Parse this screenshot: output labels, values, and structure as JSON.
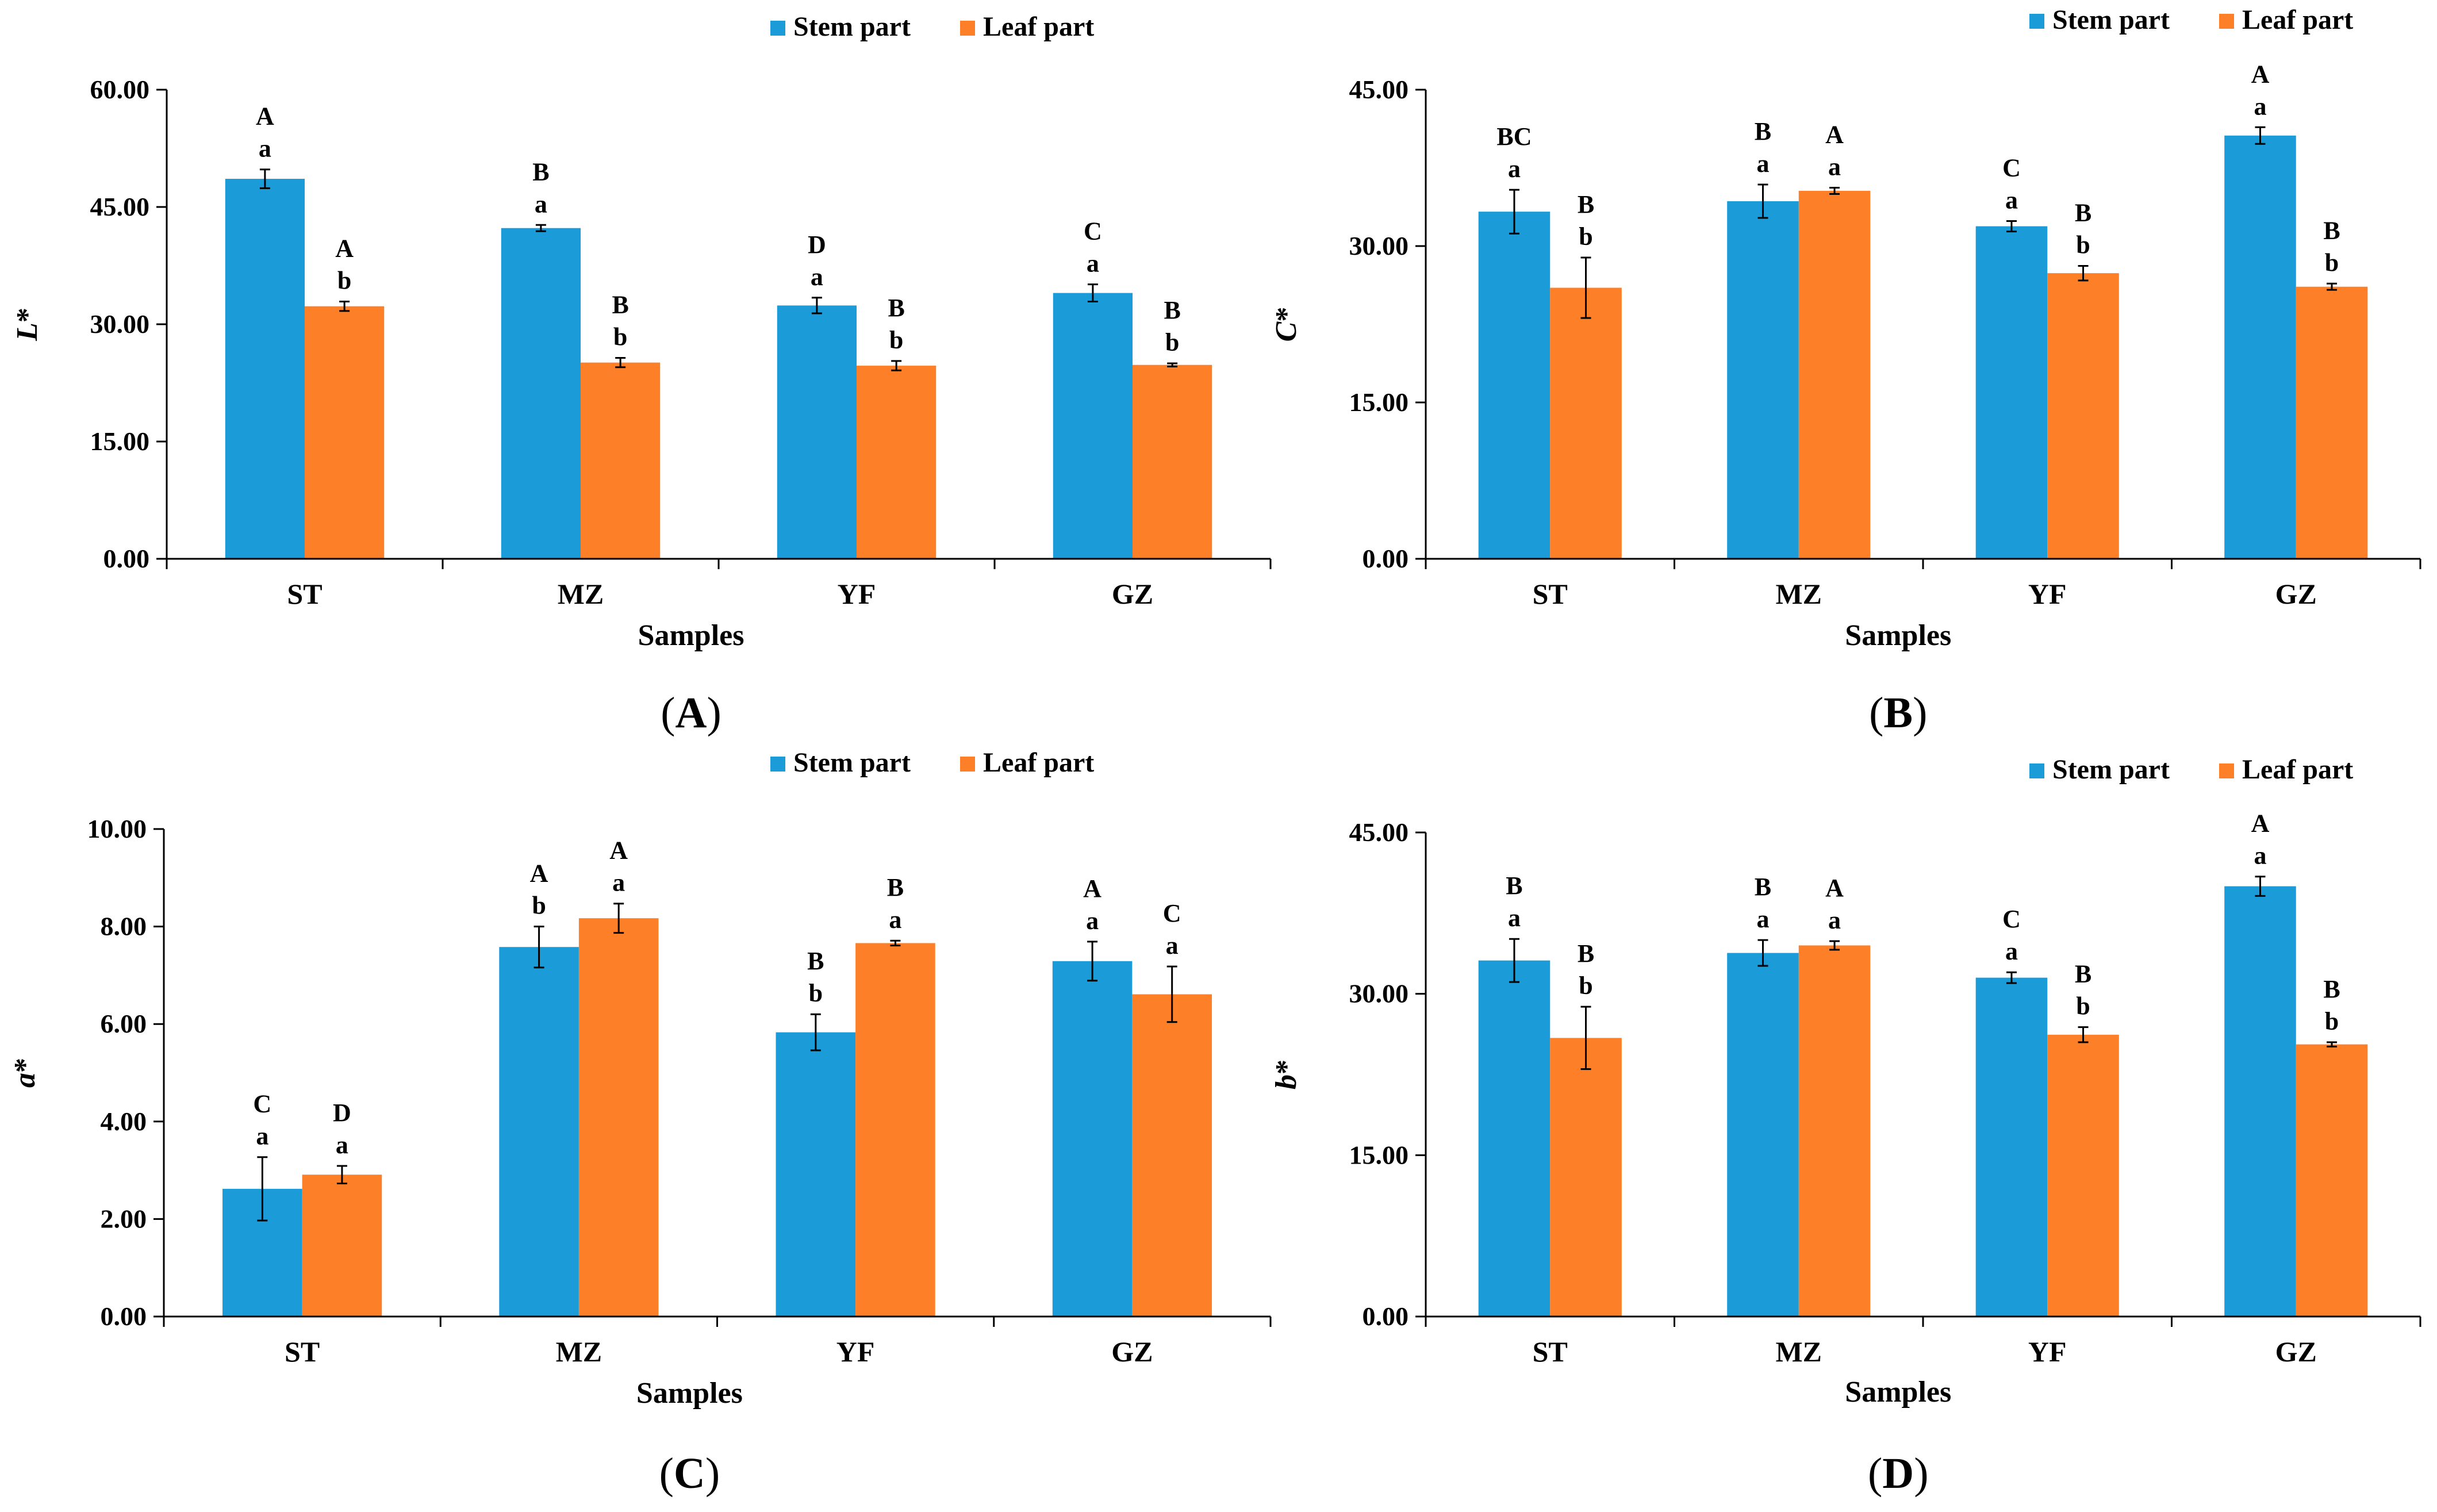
{
  "colors": {
    "stem": "#1b9cd8",
    "leaf": "#fd7f27",
    "axis": "#000000"
  },
  "legend": {
    "stem_label": "Stem part",
    "leaf_label": "Leaf part"
  },
  "chart_data": [
    {
      "panel": "(A)",
      "panel_letter": "A",
      "type": "bar",
      "ylabel_base": "L",
      "ylabel_suffix": "*",
      "xlabel": "Samples",
      "categories": [
        "ST",
        "MZ",
        "YF",
        "GZ"
      ],
      "ylim": [
        0,
        60
      ],
      "yticks": [
        0,
        15,
        30,
        45,
        60
      ],
      "ytick_labels": [
        "0.00",
        "15.00",
        "30.00",
        "45.00",
        "60.00"
      ],
      "series": [
        {
          "name": "Stem part",
          "values": [
            48.6,
            42.3,
            32.4,
            34.0
          ],
          "errors": [
            1.2,
            0.4,
            1.0,
            1.1
          ],
          "sig_upper": [
            "A",
            "B",
            "D",
            "C"
          ],
          "sig_lower": [
            "a",
            "a",
            "a",
            "a"
          ]
        },
        {
          "name": "Leaf part",
          "values": [
            32.3,
            25.1,
            24.7,
            24.8
          ],
          "errors": [
            0.6,
            0.6,
            0.6,
            0.2
          ],
          "sig_upper": [
            "A",
            "B",
            "B",
            "B"
          ],
          "sig_lower": [
            "b",
            "b",
            "b",
            "b"
          ]
        }
      ]
    },
    {
      "panel": "(B)",
      "panel_letter": "B",
      "type": "bar",
      "ylabel_base": "C",
      "ylabel_suffix": "*",
      "xlabel": "Samples",
      "categories": [
        "ST",
        "MZ",
        "YF",
        "GZ"
      ],
      "ylim": [
        0,
        45
      ],
      "yticks": [
        0,
        15,
        30,
        45
      ],
      "ytick_labels": [
        "0.00",
        "15.00",
        "30.00",
        "45.00"
      ],
      "series": [
        {
          "name": "Stem part",
          "values": [
            33.3,
            34.3,
            31.9,
            40.6
          ],
          "errors": [
            2.1,
            1.6,
            0.5,
            0.8
          ],
          "sig_upper": [
            "BC",
            "B",
            "C",
            "A"
          ],
          "sig_lower": [
            "a",
            "a",
            "a",
            "a"
          ]
        },
        {
          "name": "Leaf part",
          "values": [
            26.0,
            35.3,
            27.4,
            26.1
          ],
          "errors": [
            2.9,
            0.3,
            0.7,
            0.3
          ],
          "sig_upper": [
            "B",
            "A",
            "B",
            "B"
          ],
          "sig_lower": [
            "b",
            "a",
            "b",
            "b"
          ]
        }
      ]
    },
    {
      "panel": "(C)",
      "panel_letter": "C",
      "type": "bar",
      "ylabel_base": "a",
      "ylabel_suffix": "*",
      "xlabel": "Samples",
      "categories": [
        "ST",
        "MZ",
        "YF",
        "GZ"
      ],
      "ylim": [
        0,
        10
      ],
      "yticks": [
        0,
        2,
        4,
        6,
        8,
        10
      ],
      "ytick_labels": [
        "0.00",
        "2.00",
        "4.00",
        "6.00",
        "8.00",
        "10.00"
      ],
      "series": [
        {
          "name": "Stem part",
          "values": [
            2.62,
            7.58,
            5.83,
            7.29
          ],
          "errors": [
            0.65,
            0.42,
            0.37,
            0.4
          ],
          "sig_upper": [
            "C",
            "A",
            "B",
            "A"
          ],
          "sig_lower": [
            "a",
            "b",
            "b",
            "a"
          ]
        },
        {
          "name": "Leaf part",
          "values": [
            2.91,
            8.17,
            7.66,
            6.61
          ],
          "errors": [
            0.18,
            0.3,
            0.05,
            0.57
          ],
          "sig_upper": [
            "D",
            "A",
            "B",
            "C"
          ],
          "sig_lower": [
            "a",
            "a",
            "a",
            "a"
          ]
        }
      ]
    },
    {
      "panel": "(D)",
      "panel_letter": "D",
      "type": "bar",
      "ylabel_base": "b",
      "ylabel_suffix": "*",
      "xlabel": "Samples",
      "categories": [
        "ST",
        "MZ",
        "YF",
        "GZ"
      ],
      "ylim": [
        0,
        45
      ],
      "yticks": [
        0,
        15,
        30,
        45
      ],
      "ytick_labels": [
        "0.00",
        "15.00",
        "30.00",
        "45.00"
      ],
      "series": [
        {
          "name": "Stem part",
          "values": [
            33.1,
            33.8,
            31.5,
            40.0
          ],
          "errors": [
            2.0,
            1.2,
            0.5,
            0.9
          ],
          "sig_upper": [
            "B",
            "B",
            "C",
            "A"
          ],
          "sig_lower": [
            "a",
            "a",
            "a",
            "a"
          ]
        },
        {
          "name": "Leaf part",
          "values": [
            25.9,
            34.5,
            26.2,
            25.3
          ],
          "errors": [
            2.9,
            0.4,
            0.7,
            0.2
          ],
          "sig_upper": [
            "B",
            "A",
            "B",
            "B"
          ],
          "sig_lower": [
            "b",
            "a",
            "b",
            "b"
          ]
        }
      ]
    }
  ]
}
